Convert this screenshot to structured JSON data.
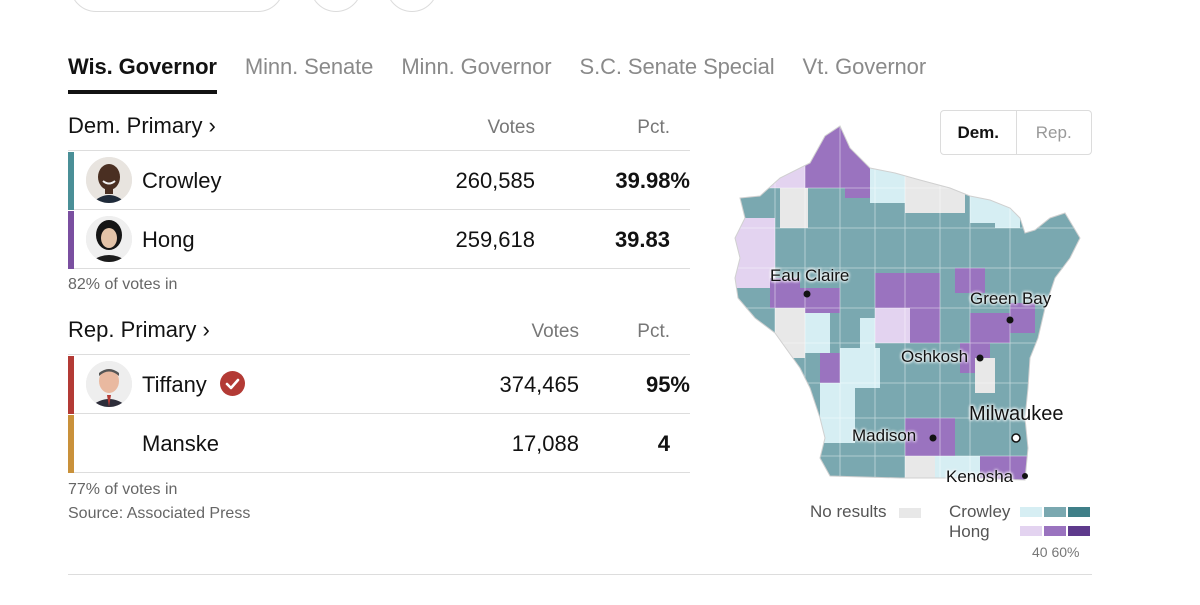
{
  "tabs": [
    {
      "label": "Wis. Governor",
      "active": true
    },
    {
      "label": "Minn. Senate",
      "active": false
    },
    {
      "label": "Minn. Governor",
      "active": false
    },
    {
      "label": "S.C. Senate Special",
      "active": false
    },
    {
      "label": "Vt. Governor",
      "active": false
    }
  ],
  "dem": {
    "title": "Dem. Primary ›",
    "votes_header": "Votes",
    "pct_header": "Pct.",
    "candidates": [
      {
        "name": "Crowley",
        "votes": "260,585",
        "pct": "39.98%",
        "color": "#4a8f97"
      },
      {
        "name": "Hong",
        "votes": "259,618",
        "pct": "39.83",
        "color": "#7a4fa0"
      }
    ],
    "reporting": "82% of votes in"
  },
  "rep": {
    "title": "Rep. Primary ›",
    "votes_header": "Votes",
    "pct_header": "Pct.",
    "candidates": [
      {
        "name": "Tiffany",
        "votes": "374,465",
        "pct": "95%",
        "color": "#b33a35",
        "winner": true
      },
      {
        "name": "Manske",
        "votes": "17,088",
        "pct": "4",
        "color": "#c9913a"
      }
    ],
    "reporting": "77% of votes in",
    "source": "Source: Associated Press"
  },
  "map": {
    "toggle": {
      "dem": "Dem.",
      "rep": "Rep."
    },
    "cities": [
      "Eau Claire",
      "Green Bay",
      "Oshkosh",
      "Milwaukee",
      "Madison",
      "Kenosha"
    ],
    "colors": {
      "crowley_light": "#d6eef3",
      "crowley_mid": "#7aa8b0",
      "crowley_dark": "#3f7f88",
      "hong_light": "#e3d3f0",
      "hong_mid": "#9a73bf",
      "hong_dark": "#5e3a8c",
      "no_results": "#e8e8e8"
    }
  },
  "legend": {
    "no_results": "No results",
    "crowley": "Crowley",
    "hong": "Hong",
    "scale": "40 60%"
  }
}
